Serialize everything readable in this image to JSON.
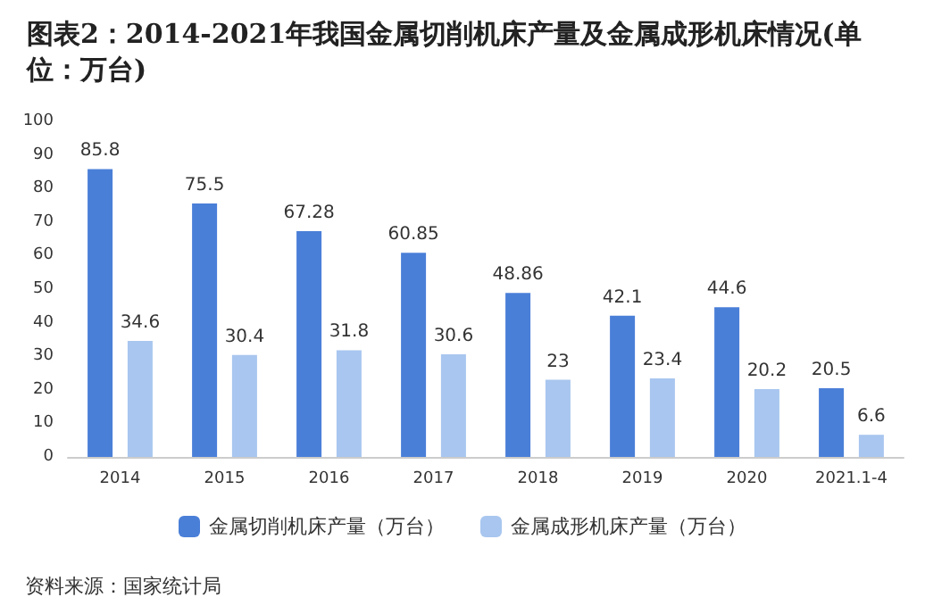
{
  "chart_data": {
    "type": "bar",
    "title": "图表2：2014-2021年我国金属切削机床产量及金属成形机床情况(单位：万台)",
    "categories": [
      "2014",
      "2015",
      "2016",
      "2017",
      "2018",
      "2019",
      "2020",
      "2021.1-4"
    ],
    "series": [
      {
        "name": "金属切削机床产量（万台）",
        "color": "#4a7fd8",
        "values": [
          85.8,
          75.5,
          67.28,
          60.85,
          48.86,
          42.1,
          44.6,
          20.5
        ]
      },
      {
        "name": "金属成形机床产量（万台）",
        "color": "#a8c6ef",
        "values": [
          34.6,
          30.4,
          31.8,
          30.6,
          23,
          23.4,
          20.2,
          6.6
        ]
      }
    ],
    "ylim": [
      0,
      100
    ],
    "yticks": [
      0,
      10,
      20,
      30,
      40,
      50,
      60,
      70,
      80,
      90,
      100
    ],
    "grid": false,
    "legend": "bottom",
    "data_labels": true,
    "annotations": [
      "资料来源：国家统计局"
    ]
  }
}
